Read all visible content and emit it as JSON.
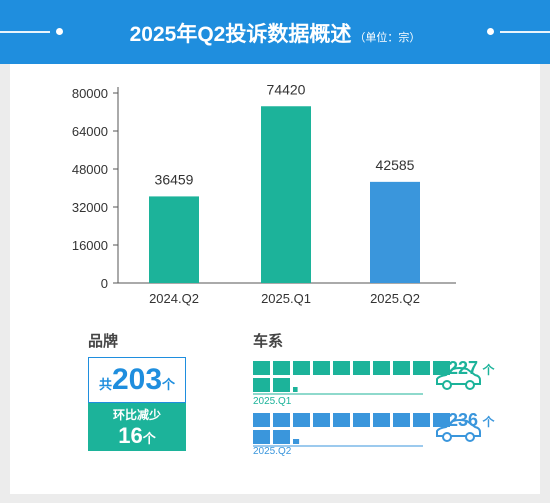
{
  "header": {
    "title": "2025年Q2投诉数据概述",
    "unit": "（单位：宗）"
  },
  "colors": {
    "header": "#1f8ede",
    "teal": "#1cb39a",
    "blue": "#3a96dc",
    "line_teal": "#1cb39a"
  },
  "chart_data": {
    "type": "bar",
    "categories": [
      "2024.Q2",
      "2025.Q1",
      "2025.Q2"
    ],
    "values": [
      36459,
      74420,
      42585
    ],
    "bar_colors": [
      "#1cb39a",
      "#1cb39a",
      "#3a96dc"
    ],
    "ylim": [
      0,
      80000
    ],
    "yticks": [
      0,
      16000,
      32000,
      48000,
      64000,
      80000
    ],
    "grid": false,
    "title": "",
    "xlabel": "",
    "ylabel": ""
  },
  "brand": {
    "section_title": "品牌",
    "total_prefix": "共",
    "total_value": "203",
    "total_unit": "个",
    "change_label": "环比减少",
    "change_value": "16",
    "change_unit": "个"
  },
  "series": {
    "section_title": "车系",
    "rows": [
      {
        "label": "2025.Q1",
        "value": 1227,
        "count": "1227",
        "unit": "个",
        "color": "#1cb39a",
        "car_icon": "car-icon"
      },
      {
        "label": "2025.Q2",
        "value": 1236,
        "count": "1236",
        "unit": "个",
        "color": "#3a96dc",
        "car_icon": "car-icon"
      }
    ]
  }
}
